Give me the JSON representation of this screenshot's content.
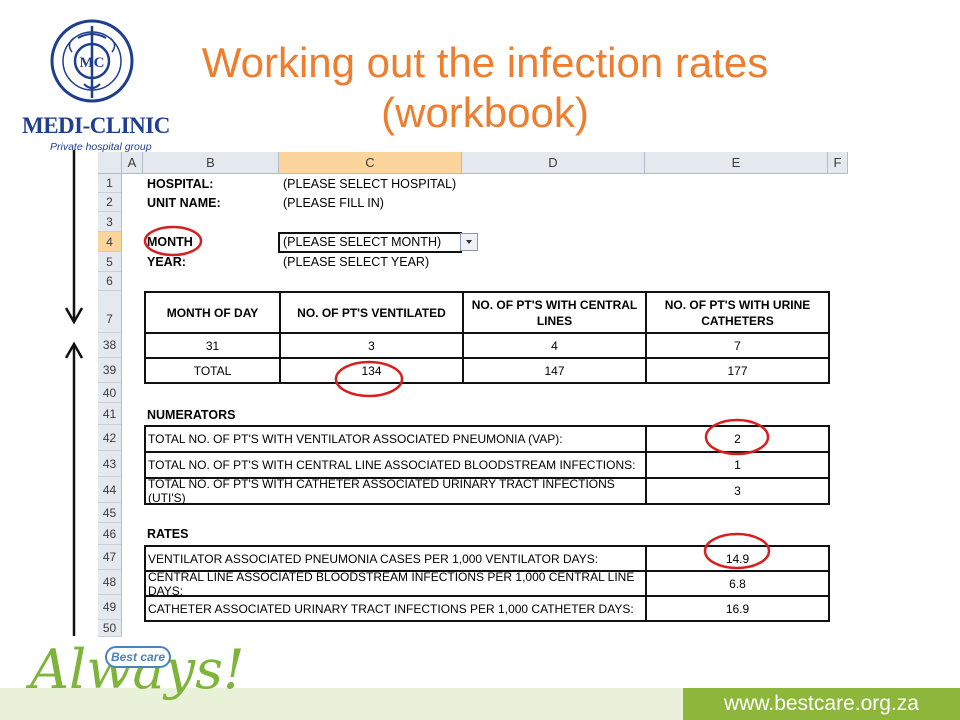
{
  "logo": {
    "name": "MEDI-CLINIC",
    "tagline": "Private hospital group",
    "seal_text_top": "GROUP",
    "seal_text_bottom": "MEDI-CLINIC",
    "seal_initials": "MC"
  },
  "title": {
    "line1": "Working out the infection rates",
    "line2": "(workbook)"
  },
  "colors": {
    "title": "#ee7d2d",
    "logo_blue": "#1f3e8f",
    "annotation_red": "#d62020",
    "footer_green": "#8cb73a",
    "always_green": "#7fb43b",
    "header_active": "#fbd59c"
  },
  "spreadsheet": {
    "columns": [
      "A",
      "B",
      "C",
      "D",
      "E",
      "F"
    ],
    "active_column": "C",
    "row_numbers": [
      "1",
      "2",
      "3",
      "4",
      "5",
      "6",
      "7",
      "38",
      "39",
      "40",
      "41",
      "42",
      "43",
      "44",
      "45",
      "46",
      "47",
      "48",
      "49",
      "50"
    ],
    "active_row": "4",
    "fields": {
      "hospital_label": "HOSPITAL:",
      "hospital_value": "(PLEASE SELECT HOSPITAL)",
      "unit_label": "UNIT NAME:",
      "unit_value": "(PLEASE FILL IN)",
      "month_label": "MONTH",
      "month_value": "(PLEASE SELECT MONTH)",
      "year_label": "YEAR:",
      "year_value": "(PLEASE SELECT YEAR)"
    },
    "data_table": {
      "headers": [
        "MONTH OF DAY",
        "NO. OF PT'S VENTILATED",
        "NO. OF PT'S WITH CENTRAL LINES",
        "NO. OF PT'S WITH URINE CATHETERS"
      ],
      "row_38": [
        "31",
        "3",
        "4",
        "7"
      ],
      "total_row": [
        "TOTAL",
        "134",
        "147",
        "177"
      ]
    },
    "numerators": {
      "heading": "NUMERATORS",
      "rows": [
        {
          "label": "TOTAL NO. OF PT'S WITH VENTILATOR ASSOCIATED PNEUMONIA (VAP):",
          "value": "2"
        },
        {
          "label": "TOTAL NO. OF PT'S WITH CENTRAL LINE ASSOCIATED BLOODSTREAM INFECTIONS:",
          "value": "1"
        },
        {
          "label": "TOTAL NO. OF PT'S WITH CATHETER ASSOCIATED URINARY TRACT INFECTIONS (UTI'S)",
          "value": "3"
        }
      ]
    },
    "rates": {
      "heading": "RATES",
      "rows": [
        {
          "label": "VENTILATOR ASSOCIATED PNEUMONIA CASES PER 1,000 VENTILATOR DAYS:",
          "value": "14.9"
        },
        {
          "label": "CENTRAL LINE ASSOCIATED BLOODSTREAM INFECTIONS PER 1,000 CENTRAL LINE DAYS:",
          "value": "6.8"
        },
        {
          "label": "CATHETER ASSOCIATED URINARY TRACT INFECTIONS PER 1,000 CATHETER DAYS:",
          "value": "16.9"
        }
      ]
    }
  },
  "footer": {
    "badge": "Best care",
    "slogan": "Always!",
    "url": "www.bestcare.org.za"
  }
}
